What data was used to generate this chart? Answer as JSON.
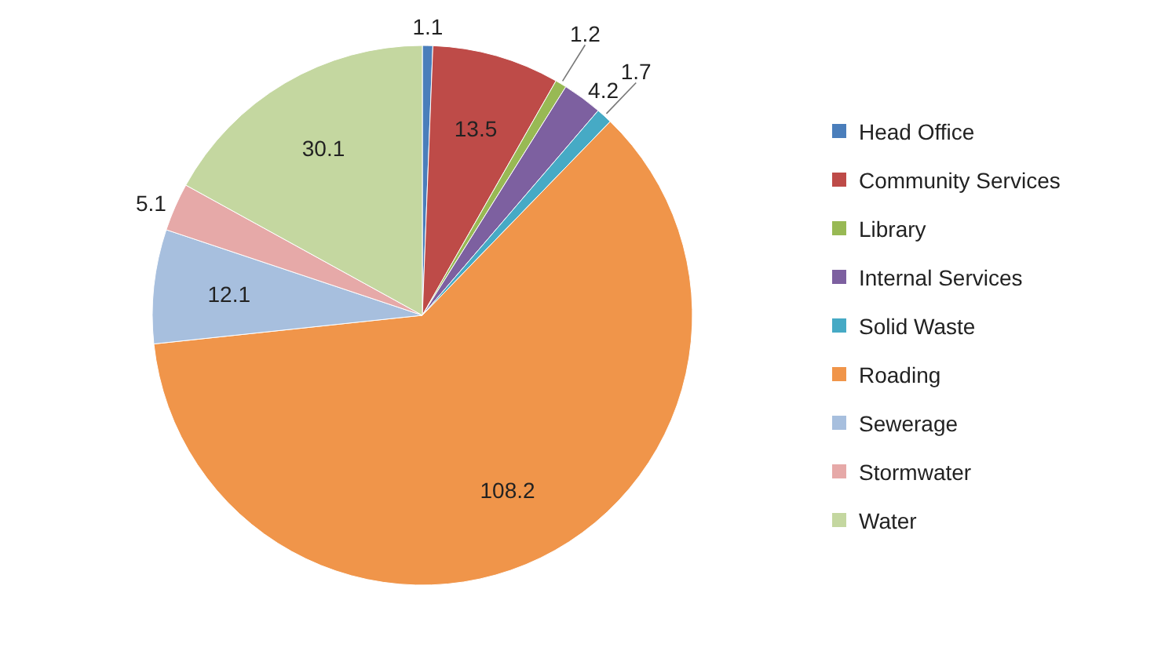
{
  "chart_data": {
    "type": "pie",
    "categories": [
      "Head Office",
      "Community Services",
      "Library",
      "Internal Services",
      "Solid Waste",
      "Roading",
      "Sewerage",
      "Stormwater",
      "Water"
    ],
    "values": [
      1.1,
      13.5,
      1.2,
      4.2,
      1.7,
      108.2,
      12.1,
      5.1,
      30.1
    ],
    "colors": [
      "#4a7ebb",
      "#be4b48",
      "#98b954",
      "#7d60a0",
      "#46aac5",
      "#f0954a",
      "#a7bfde",
      "#e6a9a8",
      "#c4d7a0"
    ],
    "data_labels": true,
    "legend": "right"
  }
}
